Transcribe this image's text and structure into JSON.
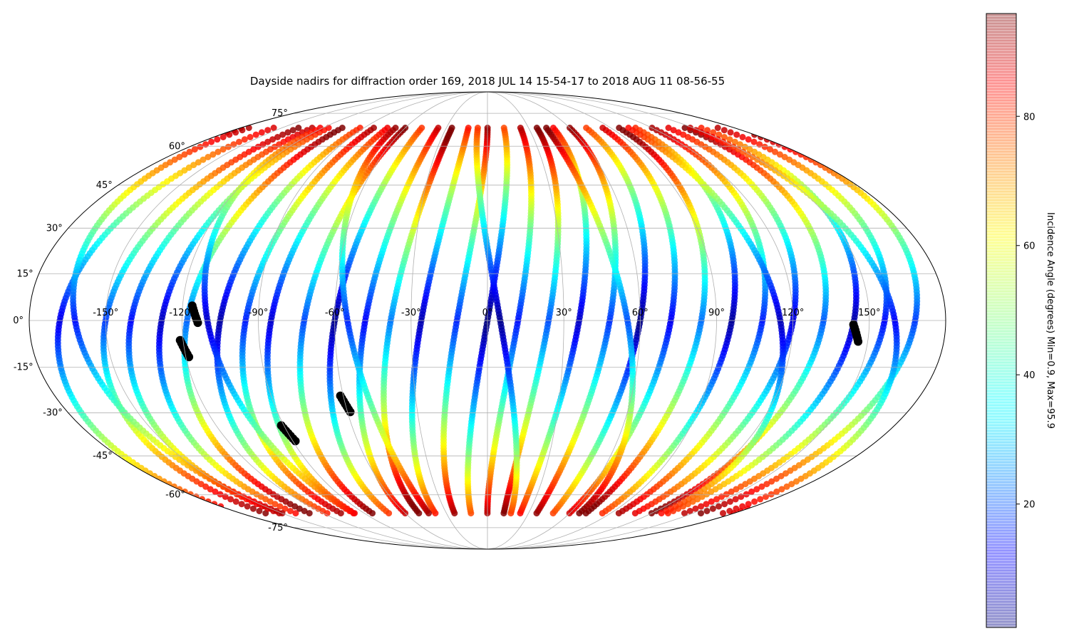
{
  "chart_data": {
    "type": "scatter",
    "projection": "mollweide",
    "title": "Dayside nadirs for diffraction order 169, 2018 JUL 14 15-54-17 to 2018 AUG 11 08-56-55",
    "xlabel": "",
    "ylabel": "",
    "grid": true,
    "xlim": [
      -180,
      180
    ],
    "ylim": [
      -90,
      90
    ],
    "lon_ticks": [
      -150,
      -120,
      -90,
      -60,
      -30,
      0,
      30,
      60,
      90,
      120,
      150
    ],
    "lon_tick_labels": [
      "-150°",
      "-120°",
      "-90°",
      "-60°",
      "-30°",
      "0°",
      "30°",
      "60°",
      "90°",
      "120°",
      "150°"
    ],
    "lat_ticks": [
      75,
      60,
      45,
      30,
      15,
      0,
      -15,
      -30,
      -45,
      -60,
      -75
    ],
    "lat_tick_labels": [
      "75°",
      "60°",
      "45°",
      "30°",
      "15°",
      "0°",
      "-15°",
      "-30°",
      "-45°",
      "-60°",
      "-75°"
    ],
    "data_lat_range": [
      -68,
      68
    ],
    "tracks": [
      {
        "cross_lon": -168,
        "incl": 92,
        "dir": 1,
        "offset": 0
      },
      {
        "cross_lon": -150,
        "incl": 92,
        "dir": 1,
        "offset": 8
      },
      {
        "cross_lon": -140,
        "incl": 92,
        "dir": 1,
        "offset": 3
      },
      {
        "cross_lon": -128,
        "incl": 92,
        "dir": 1,
        "offset": -4
      },
      {
        "cross_lon": -118,
        "incl": 92,
        "dir": 1,
        "offset": 12
      },
      {
        "cross_lon": -105,
        "incl": 92,
        "dir": 1,
        "offset": -6
      },
      {
        "cross_lon": -95,
        "incl": 92,
        "dir": 1,
        "offset": 5
      },
      {
        "cross_lon": -85,
        "incl": 92,
        "dir": 1,
        "offset": -2
      },
      {
        "cross_lon": -72,
        "incl": 92,
        "dir": 1,
        "offset": 9
      },
      {
        "cross_lon": -60,
        "incl": 92,
        "dir": 1,
        "offset": -8
      },
      {
        "cross_lon": -48,
        "incl": 92,
        "dir": 1,
        "offset": 2
      },
      {
        "cross_lon": -38,
        "incl": 92,
        "dir": 1,
        "offset": 14
      },
      {
        "cross_lon": -26,
        "incl": 92,
        "dir": 1,
        "offset": -5
      },
      {
        "cross_lon": -12,
        "incl": 92,
        "dir": 1,
        "offset": 6
      },
      {
        "cross_lon": 0,
        "incl": 92,
        "dir": 1,
        "offset": -10
      },
      {
        "cross_lon": 12,
        "incl": 92,
        "dir": 1,
        "offset": 4
      },
      {
        "cross_lon": 24,
        "incl": 92,
        "dir": 1,
        "offset": 10
      },
      {
        "cross_lon": 36,
        "incl": 92,
        "dir": 1,
        "offset": -3
      },
      {
        "cross_lon": 48,
        "incl": 92,
        "dir": 1,
        "offset": 7
      },
      {
        "cross_lon": 60,
        "incl": 92,
        "dir": 1,
        "offset": -9
      },
      {
        "cross_lon": 72,
        "incl": 92,
        "dir": 1,
        "offset": 1
      },
      {
        "cross_lon": 84,
        "incl": 92,
        "dir": 1,
        "offset": 13
      },
      {
        "cross_lon": 96,
        "incl": 92,
        "dir": 1,
        "offset": -7
      },
      {
        "cross_lon": 108,
        "incl": 92,
        "dir": 1,
        "offset": 5
      },
      {
        "cross_lon": 120,
        "incl": 92,
        "dir": 1,
        "offset": -1
      },
      {
        "cross_lon": 132,
        "incl": 92,
        "dir": 1,
        "offset": 11
      },
      {
        "cross_lon": 144,
        "incl": 92,
        "dir": 1,
        "offset": -6
      },
      {
        "cross_lon": 156,
        "incl": 92,
        "dir": 1,
        "offset": 3
      },
      {
        "cross_lon": 168,
        "incl": 92,
        "dir": 1,
        "offset": 8
      },
      {
        "cross_lon": -162,
        "incl": 92,
        "dir": -1,
        "offset": 4
      },
      {
        "cross_lon": -110,
        "incl": 92,
        "dir": -1,
        "offset": -3
      },
      {
        "cross_lon": -55,
        "incl": 92,
        "dir": -1,
        "offset": 6
      },
      {
        "cross_lon": 5,
        "incl": 92,
        "dir": -1,
        "offset": -8
      },
      {
        "cross_lon": 55,
        "incl": 92,
        "dir": -1,
        "offset": 10
      },
      {
        "cross_lon": 115,
        "incl": 92,
        "dir": -1,
        "offset": -4
      },
      {
        "cross_lon": 160,
        "incl": 92,
        "dir": -1,
        "offset": 2
      }
    ],
    "black_markers": [
      {
        "lon": -115,
        "lat": 2
      },
      {
        "lon": -120,
        "lat": -9
      },
      {
        "lon": -90,
        "lat": -37
      },
      {
        "lon": -60,
        "lat": -27
      },
      {
        "lon": 145,
        "lat": -4
      }
    ],
    "colorbar": {
      "label": "Incidence Angle (degrees) Min=0.9, Max=95.9",
      "min": 0.9,
      "max": 95.9,
      "ticks": [
        20,
        40,
        60,
        80
      ],
      "tick_labels": [
        "20",
        "40",
        "60",
        "80"
      ],
      "colormap": "jet",
      "alpha": 0.3
    }
  }
}
